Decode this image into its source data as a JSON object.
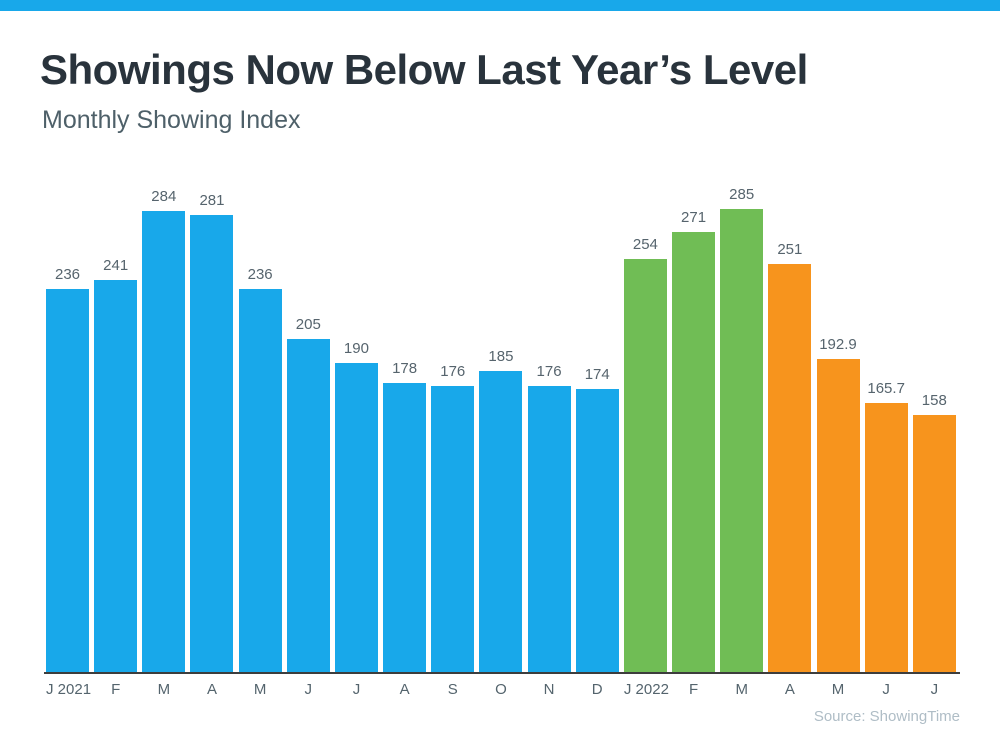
{
  "page": {
    "accent_bar_color": "#18A8EA",
    "background_color": "#FFFFFF"
  },
  "header": {
    "title": "Showings Now Below Last Year’s Level",
    "subtitle": "Monthly Showing Index"
  },
  "footer": {
    "source": "Source: ShowingTime"
  },
  "chart_data": {
    "type": "bar",
    "title": "Showings Now Below Last Year’s Level",
    "subtitle": "Monthly Showing Index",
    "categories": [
      "J 2021",
      "F",
      "M",
      "A",
      "M",
      "J",
      "J",
      "A",
      "S",
      "O",
      "N",
      "D",
      "J 2022",
      "F",
      "M",
      "A",
      "M",
      "J",
      "J"
    ],
    "values": [
      236,
      241,
      284,
      281,
      236,
      205,
      190,
      178,
      176,
      185,
      176,
      174,
      254,
      271,
      285,
      251,
      192.9,
      165.7,
      158
    ],
    "value_labels": [
      "236",
      "241",
      "284",
      "281",
      "236",
      "205",
      "190",
      "178",
      "176",
      "185",
      "176",
      "174",
      "254",
      "271",
      "285",
      "251",
      "192.9",
      "165.7",
      "158"
    ],
    "bar_colors": [
      "#18A8EA",
      "#18A8EA",
      "#18A8EA",
      "#18A8EA",
      "#18A8EA",
      "#18A8EA",
      "#18A8EA",
      "#18A8EA",
      "#18A8EA",
      "#18A8EA",
      "#18A8EA",
      "#18A8EA",
      "#70BD55",
      "#70BD55",
      "#70BD55",
      "#F7941D",
      "#F7941D",
      "#F7941D",
      "#F7941D"
    ],
    "color_groups": [
      {
        "color": "#18A8EA",
        "category_range": "J 2021 - D"
      },
      {
        "color": "#70BD55",
        "category_range": "J 2022 - M"
      },
      {
        "color": "#F7941D",
        "category_range": "A - J"
      }
    ],
    "ylim": [
      0,
      285
    ],
    "grid": false,
    "legend": false,
    "value_label_color": "#56646D",
    "axis_label_color": "#54646D",
    "axis_line_color": "#3D3D3D",
    "source": "Source: ShowingTime"
  }
}
